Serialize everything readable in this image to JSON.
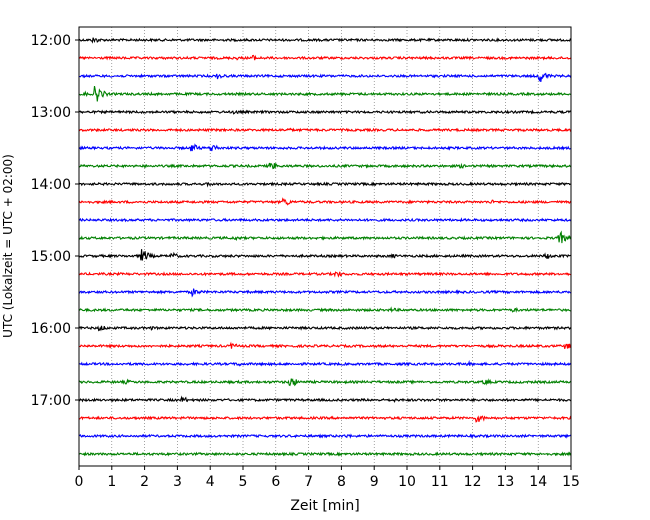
{
  "chart_data": {
    "type": "line",
    "xlabel": "Zeit  [min]",
    "ylabel": "UTC (Lokalzeit = UTC + 02:00)",
    "xlim": [
      0,
      15
    ],
    "x_ticks": [
      0,
      1,
      2,
      3,
      4,
      5,
      6,
      7,
      8,
      9,
      10,
      11,
      12,
      13,
      14,
      15
    ],
    "x_tick_labels": [
      "0",
      "1",
      "2",
      "3",
      "4",
      "5",
      "6",
      "7",
      "8",
      "9",
      "10",
      "11",
      "12",
      "13",
      "14",
      "15"
    ],
    "grid_x": "dotted",
    "y_tick_labels": [
      "12:00",
      "13:00",
      "14:00",
      "15:00",
      "16:00",
      "17:00"
    ],
    "y_tick_rows": [
      0,
      4,
      8,
      12,
      16,
      20
    ],
    "row_minutes": 15,
    "color_cycle": [
      "#000000",
      "#ff0000",
      "#0000ff",
      "#008000"
    ],
    "rows": [
      {
        "start": "12:00",
        "color": "#000000",
        "events": [
          {
            "t": 0.5,
            "amp": 3
          }
        ]
      },
      {
        "start": "12:15",
        "color": "#ff0000",
        "events": [
          {
            "t": 5.3,
            "amp": 3
          },
          {
            "t": 4.8,
            "amp": 2
          }
        ]
      },
      {
        "start": "12:30",
        "color": "#0000ff",
        "events": [
          {
            "t": 4.3,
            "amp": 3
          },
          {
            "t": 14.1,
            "amp": 6
          }
        ]
      },
      {
        "start": "12:45",
        "color": "#008000",
        "events": [
          {
            "t": 0.55,
            "amp": 8
          },
          {
            "t": 0.2,
            "amp": 2
          }
        ]
      },
      {
        "start": "13:00",
        "color": "#000000",
        "events": [
          {
            "t": 4.8,
            "amp": 2
          }
        ]
      },
      {
        "start": "13:15",
        "color": "#ff0000",
        "events": [
          {
            "t": 6.4,
            "amp": 2
          }
        ]
      },
      {
        "start": "13:30",
        "color": "#0000ff",
        "events": [
          {
            "t": 3.5,
            "amp": 4
          },
          {
            "t": 4.1,
            "amp": 4
          }
        ]
      },
      {
        "start": "13:45",
        "color": "#008000",
        "events": [
          {
            "t": 5.9,
            "amp": 4
          },
          {
            "t": 11.7,
            "amp": 2
          }
        ]
      },
      {
        "start": "14:00",
        "color": "#000000",
        "events": [
          {
            "t": 4.0,
            "amp": 2
          }
        ]
      },
      {
        "start": "14:15",
        "color": "#ff0000",
        "events": [
          {
            "t": 6.3,
            "amp": 4
          },
          {
            "t": 12.6,
            "amp": 2
          }
        ]
      },
      {
        "start": "14:30",
        "color": "#0000ff",
        "events": []
      },
      {
        "start": "14:45",
        "color": "#008000",
        "events": [
          {
            "t": 4.8,
            "amp": 2
          },
          {
            "t": 14.7,
            "amp": 6
          }
        ]
      },
      {
        "start": "15:00",
        "color": "#000000",
        "events": [
          {
            "t": 1.95,
            "amp": 7
          },
          {
            "t": 2.9,
            "amp": 3
          },
          {
            "t": 9.6,
            "amp": 2
          },
          {
            "t": 14.3,
            "amp": 3
          }
        ]
      },
      {
        "start": "15:15",
        "color": "#ff0000",
        "events": [
          {
            "t": 7.9,
            "amp": 3
          }
        ]
      },
      {
        "start": "15:30",
        "color": "#0000ff",
        "events": [
          {
            "t": 3.5,
            "amp": 4
          }
        ]
      },
      {
        "start": "15:45",
        "color": "#008000",
        "events": [
          {
            "t": 9.6,
            "amp": 2
          },
          {
            "t": 13.3,
            "amp": 2
          }
        ]
      },
      {
        "start": "16:00",
        "color": "#000000",
        "events": [
          {
            "t": 0.7,
            "amp": 3
          },
          {
            "t": 2.2,
            "amp": 2
          }
        ]
      },
      {
        "start": "16:15",
        "color": "#ff0000",
        "events": [
          {
            "t": 4.7,
            "amp": 3
          },
          {
            "t": 14.9,
            "amp": 3
          }
        ]
      },
      {
        "start": "16:30",
        "color": "#0000ff",
        "events": [
          {
            "t": 4.9,
            "amp": 2
          },
          {
            "t": 11.9,
            "amp": 2
          }
        ]
      },
      {
        "start": "16:45",
        "color": "#008000",
        "events": [
          {
            "t": 6.5,
            "amp": 5
          },
          {
            "t": 1.5,
            "amp": 2
          },
          {
            "t": 12.4,
            "amp": 3
          }
        ]
      },
      {
        "start": "17:00",
        "color": "#000000",
        "events": [
          {
            "t": 3.2,
            "amp": 3
          },
          {
            "t": 9.6,
            "amp": 2
          }
        ]
      },
      {
        "start": "17:15",
        "color": "#ff0000",
        "events": [
          {
            "t": 12.2,
            "amp": 4
          }
        ]
      },
      {
        "start": "17:30",
        "color": "#0000ff",
        "events": [
          {
            "t": 8.2,
            "amp": 2
          }
        ]
      },
      {
        "start": "17:45",
        "color": "#008000",
        "events": []
      }
    ]
  }
}
